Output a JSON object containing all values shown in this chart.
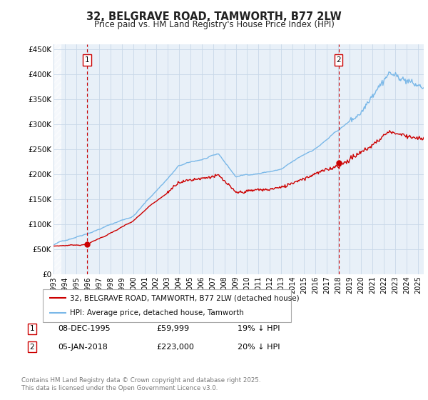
{
  "title": "32, BELGRAVE ROAD, TAMWORTH, B77 2LW",
  "subtitle": "Price paid vs. HM Land Registry's House Price Index (HPI)",
  "ylabel_ticks": [
    "£0",
    "£50K",
    "£100K",
    "£150K",
    "£200K",
    "£250K",
    "£300K",
    "£350K",
    "£400K",
    "£450K"
  ],
  "ylim": [
    0,
    460000
  ],
  "xlim_start": 1993.0,
  "xlim_end": 2025.5,
  "purchase1_date": 1995.93,
  "purchase1_price": 59999,
  "purchase2_date": 2018.02,
  "purchase2_price": 223000,
  "hpi_color": "#7ab8e8",
  "price_color": "#cc0000",
  "vline_color": "#cc0000",
  "chart_bg": "#e8f0f8",
  "legend_label_price": "32, BELGRAVE ROAD, TAMWORTH, B77 2LW (detached house)",
  "legend_label_hpi": "HPI: Average price, detached house, Tamworth",
  "table_row1": [
    "1",
    "08-DEC-1995",
    "£59,999",
    "19% ↓ HPI"
  ],
  "table_row2": [
    "2",
    "05-JAN-2018",
    "£223,000",
    "20% ↓ HPI"
  ],
  "footnote": "Contains HM Land Registry data © Crown copyright and database right 2025.\nThis data is licensed under the Open Government Licence v3.0.",
  "background_color": "#ffffff",
  "grid_color": "#c8d8e8"
}
